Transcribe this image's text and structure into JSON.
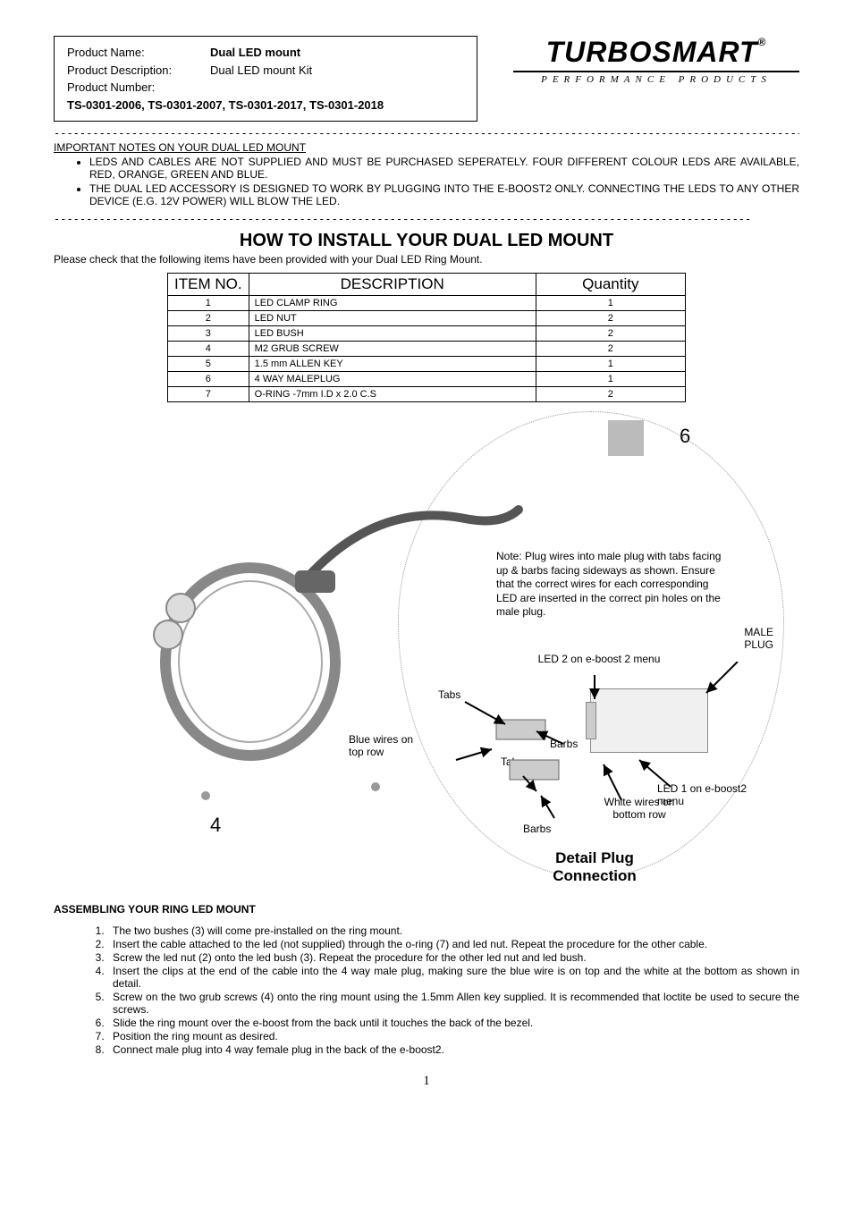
{
  "product_box": {
    "name_label": "Product Name:",
    "name_value": "Dual LED mount",
    "desc_label": "Product Description:",
    "desc_value": "Dual LED mount Kit",
    "num_label": "Product Number:",
    "num_value": "TS-0301-2006, TS-0301-2007, TS-0301-2017, TS-0301-2018"
  },
  "logo": {
    "brand": "TURBOSMART",
    "reg": "®",
    "tagline": "PERFORMANCE  PRODUCTS"
  },
  "dash_long": "----------------------------------------------------------------------------------------------------------------------",
  "dash_short": "------------------------------------------------------------------------------------------------------------",
  "notes_heading": "IMPORTANT NOTES ON YOUR DUAL LED MOUNT",
  "notes": [
    "LEDS AND CABLES ARE NOT SUPPLIED AND MUST BE PURCHASED SEPERATELY. FOUR DIFFERENT COLOUR LEDS ARE AVAILABLE, RED, ORANGE, GREEN AND BLUE.",
    "THE DUAL LED ACCESSORY IS DESIGNED TO WORK BY PLUGGING INTO THE E-BOOST2 ONLY. CONNECTING THE LEDS TO ANY OTHER DEVICE (E.G. 12V POWER) WILL BLOW THE LED."
  ],
  "install_title": "HOW TO INSTALL YOUR DUAL LED MOUNT",
  "please_check": "Please check that the following items have been provided with your Dual LED Ring Mount.",
  "bom_headers": {
    "item": "ITEM NO.",
    "desc": "DESCRIPTION",
    "qty": "Quantity"
  },
  "bom_rows": [
    {
      "no": "1",
      "desc": "LED CLAMP RING",
      "qty": "1"
    },
    {
      "no": "2",
      "desc": "LED NUT",
      "qty": "2"
    },
    {
      "no": "3",
      "desc": "LED BUSH",
      "qty": "2"
    },
    {
      "no": "4",
      "desc": "M2 GRUB SCREW",
      "qty": "2"
    },
    {
      "no": "5",
      "desc": "1.5 mm ALLEN KEY",
      "qty": "1"
    },
    {
      "no": "6",
      "desc": "4 WAY MALEPLUG",
      "qty": "1"
    },
    {
      "no": "7",
      "desc": "O-RING -7mm I.D x 2.0 C.S",
      "qty": "2"
    }
  ],
  "diagram": {
    "callout_6": "6",
    "callout_4": "4",
    "note_text": "Note: Plug wires into male plug with tabs facing up & barbs facing sideways as shown. Ensure that the correct wires for each corresponding LED are inserted in the correct pin holes on the male plug.",
    "male_plug": "MALE PLUG",
    "led2": "LED 2 on e-boost 2 menu",
    "tabs": "Tabs",
    "barbs": "Barbs",
    "blue_wires": "Blue wires on top row",
    "white_wires": "White wires on bottom row",
    "led1": "LED 1 on e-boost2 menu",
    "detail_title": "Detail Plug Connection"
  },
  "assemble_title": "ASSEMBLING YOUR RING LED MOUNT",
  "steps": [
    "The two bushes (3) will come pre-installed on the ring mount.",
    "Insert the cable attached to the led (not supplied) through the o-ring (7) and led nut. Repeat the procedure for the other cable.",
    "Screw the led nut (2) onto the led bush (3). Repeat the procedure for the other led nut and led bush.",
    "Insert the clips at the end of the cable into the 4 way male plug, making sure the blue wire is on top and the white at the bottom as shown in detail.",
    "Screw on the two grub screws (4) onto the ring mount using the 1.5mm Allen key supplied. It is recommended that loctite be used to secure the screws.",
    "Slide the ring mount over the e-boost from the back until it touches the back of the bezel.",
    "Position the ring mount as desired.",
    "Connect male plug into 4 way female plug in the back of the e-boost2."
  ],
  "page_number": "1"
}
